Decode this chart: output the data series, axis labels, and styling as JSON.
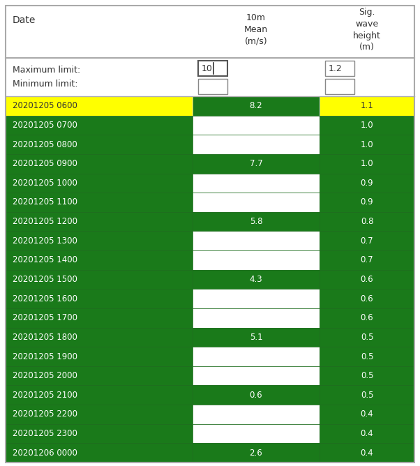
{
  "rows": [
    {
      "date": "20201205 0600",
      "wind": "8.2",
      "wave": "1.1",
      "highlight": "yellow"
    },
    {
      "date": "20201205 0700",
      "wind": "",
      "wave": "1.0",
      "highlight": "green"
    },
    {
      "date": "20201205 0800",
      "wind": "",
      "wave": "1.0",
      "highlight": "green"
    },
    {
      "date": "20201205 0900",
      "wind": "7.7",
      "wave": "1.0",
      "highlight": "green"
    },
    {
      "date": "20201205 1000",
      "wind": "",
      "wave": "0.9",
      "highlight": "green"
    },
    {
      "date": "20201205 1100",
      "wind": "",
      "wave": "0.9",
      "highlight": "green"
    },
    {
      "date": "20201205 1200",
      "wind": "5.8",
      "wave": "0.8",
      "highlight": "green"
    },
    {
      "date": "20201205 1300",
      "wind": "",
      "wave": "0.7",
      "highlight": "green"
    },
    {
      "date": "20201205 1400",
      "wind": "",
      "wave": "0.7",
      "highlight": "green"
    },
    {
      "date": "20201205 1500",
      "wind": "4.3",
      "wave": "0.6",
      "highlight": "green"
    },
    {
      "date": "20201205 1600",
      "wind": "",
      "wave": "0.6",
      "highlight": "green"
    },
    {
      "date": "20201205 1700",
      "wind": "",
      "wave": "0.6",
      "highlight": "green"
    },
    {
      "date": "20201205 1800",
      "wind": "5.1",
      "wave": "0.5",
      "highlight": "green"
    },
    {
      "date": "20201205 1900",
      "wind": "",
      "wave": "0.5",
      "highlight": "green"
    },
    {
      "date": "20201205 2000",
      "wind": "",
      "wave": "0.5",
      "highlight": "green"
    },
    {
      "date": "20201205 2100",
      "wind": "0.6",
      "wave": "0.5",
      "highlight": "green"
    },
    {
      "date": "20201205 2200",
      "wind": "",
      "wave": "0.4",
      "highlight": "green"
    },
    {
      "date": "20201205 2300",
      "wind": "",
      "wave": "0.4",
      "highlight": "green"
    },
    {
      "date": "20201206 0000",
      "wind": "2.6",
      "wave": "0.4",
      "highlight": "green"
    }
  ],
  "max_limit_wind": "10",
  "max_limit_wave": "1.2",
  "dark_green": "#1a7a1a",
  "yellow": "#ffff00",
  "white": "#ffffff",
  "text_dark": "#333333",
  "text_white": "#ffffff",
  "header_line_color": "#aaaaaa",
  "border_green": "#1a6a1a",
  "border_white": "#cccccc"
}
